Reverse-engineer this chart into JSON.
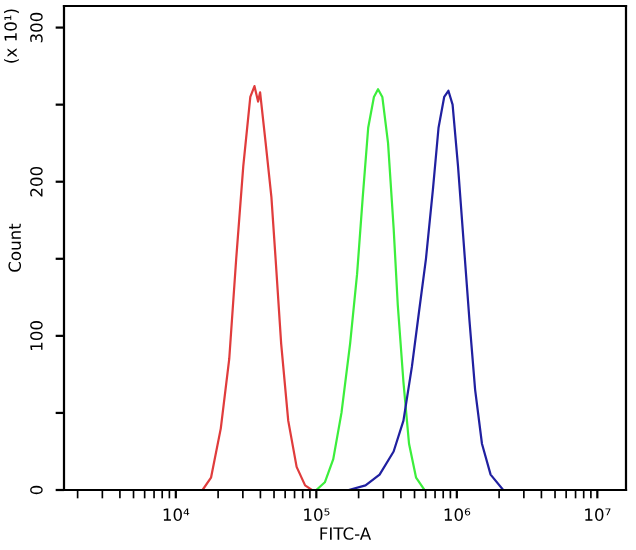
{
  "chart_data": {
    "type": "line",
    "xlabel": "FITC-A",
    "ylabel": "Count",
    "annotations": [
      "(x 10¹)"
    ],
    "log": "x",
    "grid": false,
    "legend": false,
    "xlim": [
      1600,
      16000000
    ],
    "xticks": [
      {
        "value": 10000,
        "label": "10⁴"
      },
      {
        "value": 100000,
        "label": "10⁵"
      },
      {
        "value": 1000000,
        "label": "10⁶"
      },
      {
        "value": 10000000,
        "label": "10⁷"
      }
    ],
    "ylim": [
      0,
      314
    ],
    "yticks": [
      0,
      {
        "value": 50,
        "label": null
      },
      100,
      {
        "value": 150,
        "label": null
      },
      200,
      {
        "value": 250,
        "label": null
      },
      300
    ],
    "series": [
      {
        "color": "#e03c3c",
        "x": [
          15500,
          17800,
          20900,
          24000,
          26900,
          30200,
          33900,
          36300,
          38500,
          39800,
          43600,
          47900,
          51300,
          56200,
          63100,
          72400,
          83200,
          93300
        ],
        "values": [
          0,
          8,
          40,
          85,
          150,
          210,
          255,
          262,
          252,
          258,
          225,
          190,
          150,
          95,
          45,
          15,
          3,
          0
        ]
      },
      {
        "color": "#3cee3c",
        "x": [
          100000,
          115000,
          132000,
          151000,
          174000,
          195000,
          214000,
          234000,
          257000,
          275000,
          295000,
          324000,
          355000,
          380000,
          417000,
          457000,
          513000,
          589000
        ],
        "values": [
          0,
          5,
          20,
          50,
          95,
          140,
          190,
          235,
          255,
          260,
          255,
          225,
          170,
          120,
          70,
          30,
          8,
          0
        ]
      },
      {
        "color": "#2020a0",
        "x": [
          170000,
          224000,
          282000,
          355000,
          417000,
          479000,
          537000,
          603000,
          676000,
          741000,
          813000,
          871000,
          933000,
          1020000,
          1120000,
          1230000,
          1350000,
          1510000,
          1740000,
          2140000
        ],
        "values": [
          0,
          3,
          10,
          25,
          45,
          80,
          115,
          150,
          195,
          235,
          255,
          259,
          250,
          210,
          160,
          110,
          65,
          30,
          10,
          0
        ]
      }
    ]
  }
}
